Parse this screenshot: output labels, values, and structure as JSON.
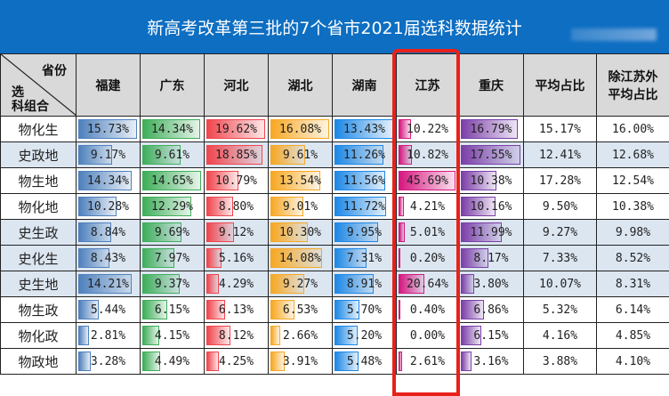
{
  "title": "新高考改革第三批的7个省市2021届选科数据统计",
  "corner": {
    "top": "省份",
    "mid": "选",
    "bottom": "科组合"
  },
  "columns": [
    "福建",
    "广东",
    "河北",
    "湖北",
    "湖南",
    "江苏",
    "重庆",
    "平均占比",
    "除江苏外\n平均占比"
  ],
  "bar_colors": [
    "#4f81bd",
    "#3fae5a",
    "#f0464e",
    "#f7a823",
    "#1e88e5",
    "#d6187f",
    "#7b3fa8"
  ],
  "highlighted_column": "江苏",
  "rows": [
    {
      "label": "物化生",
      "values": [
        "15.73%",
        "14.34%",
        "19.62%",
        "16.08%",
        "13.43%",
        "10.22%",
        "16.79%",
        "15.17%",
        "16.00%"
      ]
    },
    {
      "label": "史政地",
      "values": [
        "9.17%",
        "9.61%",
        "18.85%",
        "9.61%",
        "11.26%",
        "10.82%",
        "17.55%",
        "12.41%",
        "12.68%"
      ]
    },
    {
      "label": "物生地",
      "values": [
        "14.34%",
        "14.65%",
        "10.79%",
        "13.54%",
        "11.56%",
        "45.69%",
        "10.38%",
        "17.28%",
        "12.54%"
      ]
    },
    {
      "label": "物化地",
      "values": [
        "10.28%",
        "12.29%",
        "8.80%",
        "9.01%",
        "11.72%",
        "4.21%",
        "10.16%",
        "9.50%",
        "10.38%"
      ]
    },
    {
      "label": "史生政",
      "values": [
        "8.84%",
        "9.69%",
        "9.12%",
        "10.30%",
        "9.95%",
        "5.01%",
        "11.99%",
        "9.27%",
        "9.98%"
      ]
    },
    {
      "label": "史化生",
      "values": [
        "8.43%",
        "7.97%",
        "5.16%",
        "14.08%",
        "7.31%",
        "0.20%",
        "8.17%",
        "7.33%",
        "8.52%"
      ]
    },
    {
      "label": "史生地",
      "values": [
        "14.21%",
        "9.37%",
        "4.29%",
        "9.27%",
        "8.91%",
        "20.64%",
        "3.80%",
        "10.07%",
        "8.31%"
      ]
    },
    {
      "label": "物生政",
      "values": [
        "5.44%",
        "6.15%",
        "6.13%",
        "6.53%",
        "5.70%",
        "0.40%",
        "6.86%",
        "5.32%",
        "6.14%"
      ]
    },
    {
      "label": "物化政",
      "values": [
        "2.81%",
        "4.15%",
        "8.12%",
        "2.66%",
        "5.20%",
        "0.00%",
        "6.15%",
        "4.16%",
        "4.85%"
      ]
    },
    {
      "label": "物政地",
      "values": [
        "3.28%",
        "4.49%",
        "4.25%",
        "3.91%",
        "5.48%",
        "2.61%",
        "3.16%",
        "3.88%",
        "4.10%"
      ]
    }
  ]
}
